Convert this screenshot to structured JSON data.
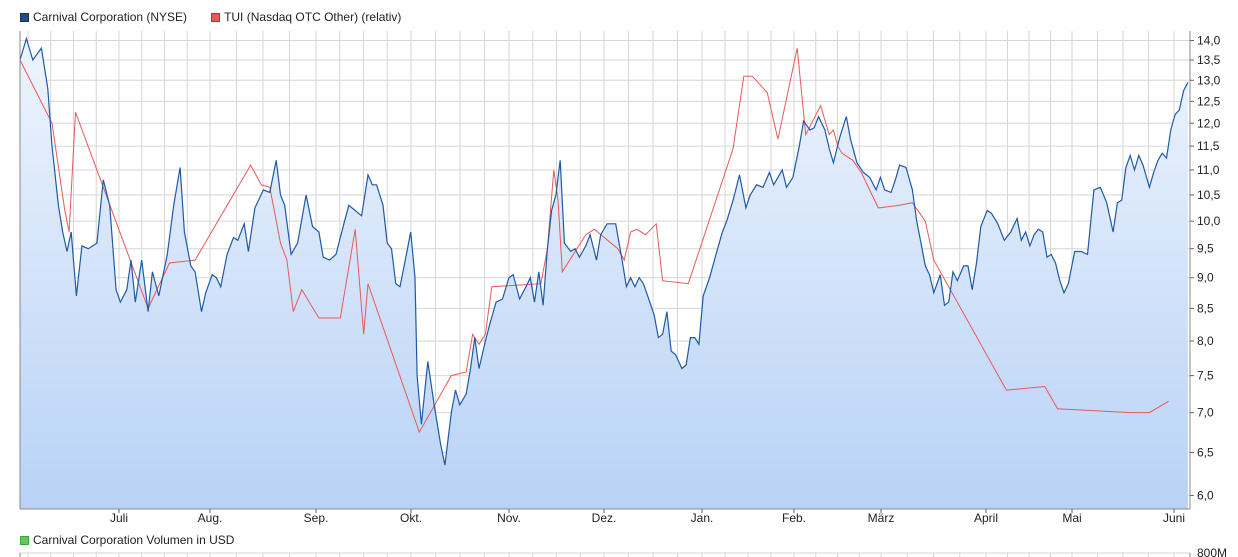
{
  "legend": {
    "series1": "Carnival Corporation (NYSE)",
    "series2": "TUI (Nasdaq OTC Other) (relativ)",
    "volume": "Carnival Corporation Volumen in USD"
  },
  "colors": {
    "series1": "#1f5aa6",
    "series1_swatch": "#1f4e8f",
    "series2": "#e8595b",
    "series2_swatch": "#e8595b",
    "volume_swatch": "#6cc16c",
    "area_top": "#eef4fd",
    "area_bottom": "#b8d2f6",
    "grid": "#d6d6d6"
  },
  "chart_data": {
    "type": "line",
    "x_axis": {
      "ticks": [
        "Juli",
        "Aug.",
        "Sep.",
        "Okt.",
        "Nov.",
        "Dez.",
        "Jan.",
        "Feb.",
        "März",
        "April",
        "Mai",
        "Juni"
      ]
    },
    "y_axis": {
      "position": "right",
      "range": [
        5.85,
        14.25
      ],
      "scale": "log",
      "ticks": [
        "14,0",
        "13,5",
        "13,0",
        "12,5",
        "12,0",
        "11,5",
        "11,0",
        "10,5",
        "10,0",
        "9,5",
        "9,0",
        "8,5",
        "8,0",
        "7,5",
        "7,0",
        "6,5",
        "6,0"
      ]
    },
    "grid": true,
    "legend_position": "top-left",
    "series": [
      {
        "name": "Carnival Corporation (NYSE)",
        "style": "line with area fill",
        "points": [
          [
            0,
            13.5
          ],
          [
            1.5,
            14.05
          ],
          [
            3,
            13.5
          ],
          [
            5,
            13.8
          ],
          [
            6.5,
            12.8
          ],
          [
            7.5,
            11.5
          ],
          [
            9,
            10.3
          ],
          [
            10,
            9.8
          ],
          [
            11,
            9.45
          ],
          [
            12,
            9.8
          ],
          [
            13.2,
            8.7
          ],
          [
            14.5,
            9.55
          ],
          [
            16,
            9.5
          ],
          [
            18,
            9.6
          ],
          [
            19.5,
            10.8
          ],
          [
            21,
            10.3
          ],
          [
            22.5,
            8.8
          ],
          [
            23.5,
            8.6
          ],
          [
            25,
            8.8
          ],
          [
            26,
            9.3
          ],
          [
            27,
            8.6
          ],
          [
            28.5,
            9.3
          ],
          [
            30,
            8.45
          ],
          [
            31,
            9.1
          ],
          [
            32.5,
            8.7
          ],
          [
            34.5,
            9.4
          ],
          [
            36,
            10.3
          ],
          [
            37.5,
            11.05
          ],
          [
            38.5,
            9.8
          ],
          [
            40,
            9.2
          ],
          [
            41,
            9.1
          ],
          [
            42.5,
            8.45
          ],
          [
            43.5,
            8.75
          ],
          [
            45,
            9.05
          ],
          [
            46,
            9.0
          ],
          [
            47,
            8.85
          ],
          [
            48.5,
            9.4
          ],
          [
            50,
            9.7
          ],
          [
            51,
            9.65
          ],
          [
            52.5,
            9.95
          ],
          [
            53.5,
            9.45
          ],
          [
            55,
            10.25
          ],
          [
            57,
            10.6
          ],
          [
            58.5,
            10.55
          ],
          [
            60,
            11.2
          ],
          [
            61,
            10.5
          ],
          [
            62,
            10.3
          ],
          [
            63.5,
            9.4
          ],
          [
            65,
            9.6
          ],
          [
            67,
            10.5
          ],
          [
            68.5,
            9.9
          ],
          [
            70,
            9.8
          ],
          [
            71,
            9.35
          ],
          [
            72.5,
            9.3
          ],
          [
            74,
            9.4
          ],
          [
            75.5,
            9.85
          ],
          [
            77,
            10.3
          ],
          [
            78.5,
            10.2
          ],
          [
            80,
            10.1
          ],
          [
            81.5,
            10.9
          ],
          [
            82.5,
            10.7
          ],
          [
            83.5,
            10.7
          ],
          [
            85,
            10.3
          ],
          [
            86,
            9.6
          ],
          [
            87,
            9.5
          ],
          [
            88,
            8.9
          ],
          [
            89,
            8.85
          ],
          [
            90.5,
            9.4
          ],
          [
            91.5,
            9.8
          ],
          [
            92.5,
            9.0
          ],
          [
            93,
            7.5
          ],
          [
            94,
            6.85
          ],
          [
            95.5,
            7.7
          ],
          [
            97,
            7.1
          ],
          [
            98.5,
            6.6
          ],
          [
            99.5,
            6.35
          ],
          [
            101,
            7.0
          ],
          [
            102,
            7.3
          ],
          [
            103,
            7.1
          ],
          [
            104.5,
            7.25
          ],
          [
            105.5,
            7.6
          ],
          [
            106.5,
            8.05
          ],
          [
            107.5,
            7.6
          ],
          [
            109,
            8.0
          ],
          [
            110,
            8.25
          ],
          [
            111.5,
            8.6
          ],
          [
            113,
            8.65
          ],
          [
            114.5,
            9.0
          ],
          [
            115.5,
            9.05
          ],
          [
            117,
            8.65
          ],
          [
            118.5,
            8.85
          ],
          [
            119.5,
            9.0
          ],
          [
            120.5,
            8.6
          ],
          [
            121.5,
            9.1
          ],
          [
            122.5,
            8.55
          ],
          [
            123.5,
            9.5
          ],
          [
            124.5,
            10.2
          ],
          [
            125.5,
            10.5
          ],
          [
            126.5,
            11.2
          ],
          [
            127.5,
            9.6
          ],
          [
            129,
            9.45
          ],
          [
            130,
            9.5
          ],
          [
            131,
            9.35
          ],
          [
            132.5,
            9.55
          ],
          [
            133.5,
            9.75
          ],
          [
            135,
            9.3
          ],
          [
            136,
            9.75
          ],
          [
            137.5,
            9.95
          ],
          [
            139.5,
            9.95
          ],
          [
            141,
            9.3
          ],
          [
            142,
            8.85
          ],
          [
            143,
            9.0
          ],
          [
            144,
            8.85
          ],
          [
            145,
            9.0
          ],
          [
            146,
            8.9
          ],
          [
            147,
            8.7
          ],
          [
            148.5,
            8.4
          ],
          [
            149.5,
            8.05
          ],
          [
            150.5,
            8.1
          ],
          [
            151.5,
            8.45
          ],
          [
            152.5,
            7.85
          ],
          [
            153.5,
            7.8
          ],
          [
            155,
            7.6
          ],
          [
            156,
            7.65
          ],
          [
            157,
            8.05
          ],
          [
            158,
            8.05
          ],
          [
            159,
            7.95
          ],
          [
            160,
            8.7
          ],
          [
            161.5,
            9.0
          ],
          [
            163,
            9.4
          ],
          [
            164.5,
            9.8
          ],
          [
            165.5,
            10.0
          ],
          [
            167,
            10.4
          ],
          [
            168.5,
            10.9
          ],
          [
            170,
            10.25
          ],
          [
            171,
            10.5
          ],
          [
            172.5,
            10.7
          ],
          [
            174,
            10.65
          ],
          [
            175.5,
            10.95
          ],
          [
            176.5,
            10.7
          ],
          [
            177.5,
            10.85
          ],
          [
            178.5,
            11.0
          ],
          [
            179.5,
            10.65
          ],
          [
            181,
            10.85
          ],
          [
            182.5,
            11.5
          ],
          [
            183.5,
            12.05
          ],
          [
            185,
            11.85
          ],
          [
            186,
            11.9
          ],
          [
            187,
            12.15
          ],
          [
            188.5,
            11.85
          ],
          [
            189.5,
            11.45
          ],
          [
            190.5,
            11.15
          ],
          [
            192,
            11.7
          ],
          [
            193.5,
            12.15
          ],
          [
            194.5,
            11.65
          ],
          [
            196,
            11.15
          ],
          [
            197.5,
            10.95
          ],
          [
            199,
            10.85
          ],
          [
            200.5,
            10.6
          ],
          [
            201.5,
            10.85
          ],
          [
            202.5,
            10.6
          ],
          [
            204,
            10.55
          ],
          [
            205,
            10.8
          ],
          [
            206,
            11.1
          ],
          [
            207.5,
            11.05
          ],
          [
            209,
            10.6
          ],
          [
            210,
            10.0
          ],
          [
            211,
            9.6
          ],
          [
            212,
            9.2
          ],
          [
            213,
            9.05
          ],
          [
            214,
            8.75
          ],
          [
            215.5,
            9.05
          ],
          [
            216.5,
            8.55
          ],
          [
            217.5,
            8.6
          ],
          [
            218.5,
            9.1
          ],
          [
            219.5,
            8.95
          ],
          [
            221,
            9.2
          ],
          [
            222,
            9.2
          ],
          [
            223,
            8.8
          ],
          [
            224,
            9.25
          ],
          [
            225,
            9.9
          ],
          [
            226.5,
            10.2
          ],
          [
            227.5,
            10.15
          ],
          [
            229,
            9.95
          ],
          [
            230.5,
            9.65
          ],
          [
            232,
            9.8
          ],
          [
            233.5,
            10.05
          ],
          [
            234.5,
            9.65
          ],
          [
            235.5,
            9.8
          ],
          [
            236.5,
            9.55
          ],
          [
            237.5,
            9.75
          ],
          [
            238.5,
            9.85
          ],
          [
            239.5,
            9.8
          ],
          [
            240.5,
            9.35
          ],
          [
            241.5,
            9.4
          ],
          [
            242.5,
            9.25
          ],
          [
            243.5,
            8.95
          ],
          [
            244.5,
            8.75
          ],
          [
            245.5,
            8.9
          ],
          [
            247,
            9.45
          ],
          [
            248.5,
            9.45
          ],
          [
            250,
            9.4
          ],
          [
            251.5,
            10.6
          ],
          [
            253,
            10.65
          ],
          [
            254.5,
            10.35
          ],
          [
            256,
            9.8
          ],
          [
            257,
            10.35
          ],
          [
            258,
            10.4
          ],
          [
            259,
            11.05
          ],
          [
            260,
            11.3
          ],
          [
            261,
            11.0
          ],
          [
            262,
            11.3
          ],
          [
            263,
            11.1
          ],
          [
            264.5,
            10.65
          ],
          [
            265.5,
            10.95
          ],
          [
            266.5,
            11.2
          ],
          [
            267.5,
            11.35
          ],
          [
            268.5,
            11.25
          ],
          [
            269.5,
            11.85
          ],
          [
            270.5,
            12.2
          ],
          [
            271.5,
            12.3
          ],
          [
            272.5,
            12.75
          ],
          [
            273.5,
            12.95
          ]
        ]
      },
      {
        "name": "TUI (Nasdaq OTC Other) (relativ)",
        "style": "line",
        "points": [
          [
            0,
            13.5
          ],
          [
            7.5,
            12.0
          ],
          [
            10.5,
            10.2
          ],
          [
            11.5,
            9.8
          ],
          [
            13,
            12.25
          ],
          [
            30,
            8.5
          ],
          [
            35,
            9.25
          ],
          [
            41,
            9.3
          ],
          [
            54,
            11.1
          ],
          [
            56.5,
            10.7
          ],
          [
            58.5,
            10.65
          ],
          [
            61,
            9.6
          ],
          [
            62.5,
            9.3
          ],
          [
            64,
            8.45
          ],
          [
            66,
            8.8
          ],
          [
            70,
            8.35
          ],
          [
            75,
            8.35
          ],
          [
            78.5,
            9.85
          ],
          [
            80.5,
            8.1
          ],
          [
            81.5,
            8.9
          ],
          [
            93.5,
            6.75
          ],
          [
            101,
            7.5
          ],
          [
            104.5,
            7.55
          ],
          [
            106,
            8.1
          ],
          [
            107.5,
            7.95
          ],
          [
            109,
            8.1
          ],
          [
            110.5,
            8.85
          ],
          [
            122,
            8.9
          ],
          [
            123.5,
            9.5
          ],
          [
            125,
            11.0
          ],
          [
            126,
            10.4
          ],
          [
            127,
            9.1
          ],
          [
            132.5,
            9.75
          ],
          [
            134.5,
            9.85
          ],
          [
            140,
            9.5
          ],
          [
            141.5,
            9.3
          ],
          [
            143,
            9.8
          ],
          [
            144.5,
            9.85
          ],
          [
            146.5,
            9.75
          ],
          [
            149,
            9.95
          ],
          [
            150.5,
            8.95
          ],
          [
            156.5,
            8.9
          ],
          [
            167,
            11.45
          ],
          [
            169.5,
            13.1
          ],
          [
            171.5,
            13.1
          ],
          [
            175,
            12.7
          ],
          [
            177.5,
            11.65
          ],
          [
            182,
            13.8
          ],
          [
            184,
            11.75
          ],
          [
            187.5,
            12.4
          ],
          [
            189.5,
            11.75
          ],
          [
            190.5,
            11.85
          ],
          [
            191.5,
            11.5
          ],
          [
            192.5,
            11.35
          ],
          [
            195,
            11.2
          ],
          [
            197,
            10.95
          ],
          [
            201,
            10.25
          ],
          [
            206,
            10.3
          ],
          [
            209,
            10.35
          ],
          [
            212,
            10.0
          ],
          [
            214,
            9.3
          ],
          [
            231,
            7.3
          ],
          [
            240,
            7.35
          ],
          [
            243,
            7.05
          ],
          [
            260,
            7.0
          ],
          [
            264.5,
            7.0
          ],
          [
            269,
            7.15
          ]
        ]
      }
    ],
    "volume_panel": {
      "title": "Carnival Corporation Volumen in USD",
      "y_tick": "800M"
    }
  }
}
